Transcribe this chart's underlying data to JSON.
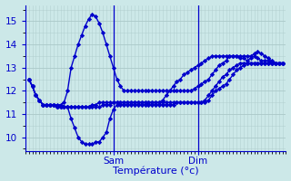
{
  "background_color": "#cce8e8",
  "grid_color": "#aac8c8",
  "line_color": "#0000cc",
  "marker": "D",
  "markersize": 2.2,
  "linewidth": 1.0,
  "ylim": [
    9.4,
    15.7
  ],
  "yticks": [
    10,
    11,
    12,
    13,
    14,
    15
  ],
  "xlabel": "Température (°c)",
  "xlabel_fontsize": 8,
  "tick_fontsize": 7.5,
  "sam_idx": 24,
  "dim_idx": 48,
  "n_points": 73,
  "series": [
    [
      12.5,
      12.2,
      11.8,
      11.6,
      11.4,
      11.4,
      11.4,
      11.4,
      11.3,
      11.3,
      11.3,
      11.3,
      10.8,
      10.4,
      10.0,
      9.8,
      9.7,
      9.7,
      9.7,
      9.8,
      9.8,
      10.0,
      10.2,
      10.8,
      11.2,
      11.4,
      11.4,
      11.4,
      11.4,
      11.4,
      11.4,
      11.4,
      11.4,
      11.4,
      11.4,
      11.4,
      11.4,
      11.4,
      11.4,
      11.4,
      11.4,
      11.4,
      11.5,
      11.5,
      11.5,
      11.5,
      11.5,
      11.5,
      11.5,
      11.5,
      11.5,
      11.6,
      11.8,
      12.0,
      12.1,
      12.2,
      12.3,
      12.5,
      12.7,
      12.9,
      13.0,
      13.1,
      13.2,
      13.2,
      13.2,
      13.2,
      13.2,
      13.2,
      13.2,
      13.2,
      13.2,
      13.2,
      13.2
    ],
    [
      12.5,
      12.2,
      11.8,
      11.6,
      11.4,
      11.4,
      11.4,
      11.4,
      11.4,
      11.4,
      11.5,
      12.0,
      13.0,
      13.5,
      14.0,
      14.4,
      14.8,
      15.1,
      15.3,
      15.2,
      14.9,
      14.5,
      14.0,
      13.5,
      13.0,
      12.5,
      12.2,
      12.0,
      12.0,
      12.0,
      12.0,
      12.0,
      12.0,
      12.0,
      12.0,
      12.0,
      12.0,
      12.0,
      12.0,
      12.0,
      12.0,
      12.0,
      12.0,
      12.0,
      12.0,
      12.0,
      12.0,
      12.1,
      12.2,
      12.3,
      12.4,
      12.5,
      12.7,
      12.9,
      13.1,
      13.2,
      13.3,
      13.5,
      13.5,
      13.5,
      13.4,
      13.4,
      13.3,
      13.4,
      13.5,
      13.4,
      13.3,
      13.3,
      13.3,
      13.2,
      13.2,
      13.2,
      13.2
    ],
    [
      12.5,
      12.2,
      11.8,
      11.6,
      11.4,
      11.4,
      11.4,
      11.4,
      11.3,
      11.3,
      11.3,
      11.3,
      11.3,
      11.3,
      11.3,
      11.3,
      11.3,
      11.3,
      11.3,
      11.3,
      11.3,
      11.4,
      11.4,
      11.4,
      11.5,
      11.5,
      11.5,
      11.5,
      11.5,
      11.5,
      11.5,
      11.5,
      11.5,
      11.5,
      11.5,
      11.5,
      11.5,
      11.5,
      11.5,
      11.5,
      11.5,
      11.5,
      11.5,
      11.5,
      11.5,
      11.5,
      11.5,
      11.5,
      11.5,
      11.5,
      11.6,
      11.8,
      12.0,
      12.2,
      12.4,
      12.6,
      12.7,
      12.9,
      13.0,
      13.1,
      13.2,
      13.2,
      13.2,
      13.2,
      13.2,
      13.2,
      13.2,
      13.2,
      13.2,
      13.2,
      13.2,
      13.2,
      13.2
    ],
    [
      12.5,
      12.2,
      11.8,
      11.6,
      11.4,
      11.4,
      11.4,
      11.4,
      11.3,
      11.3,
      11.3,
      11.3,
      11.3,
      11.3,
      11.3,
      11.3,
      11.3,
      11.3,
      11.4,
      11.4,
      11.5,
      11.5,
      11.5,
      11.5,
      11.5,
      11.5,
      11.5,
      11.5,
      11.5,
      11.5,
      11.5,
      11.5,
      11.5,
      11.5,
      11.5,
      11.5,
      11.5,
      11.5,
      11.6,
      11.8,
      12.0,
      12.2,
      12.4,
      12.5,
      12.7,
      12.8,
      12.9,
      13.0,
      13.1,
      13.2,
      13.3,
      13.4,
      13.5,
      13.5,
      13.5,
      13.5,
      13.5,
      13.5,
      13.5,
      13.5,
      13.5,
      13.5,
      13.5,
      13.5,
      13.6,
      13.7,
      13.6,
      13.5,
      13.4,
      13.3,
      13.2,
      13.2,
      13.2
    ]
  ]
}
